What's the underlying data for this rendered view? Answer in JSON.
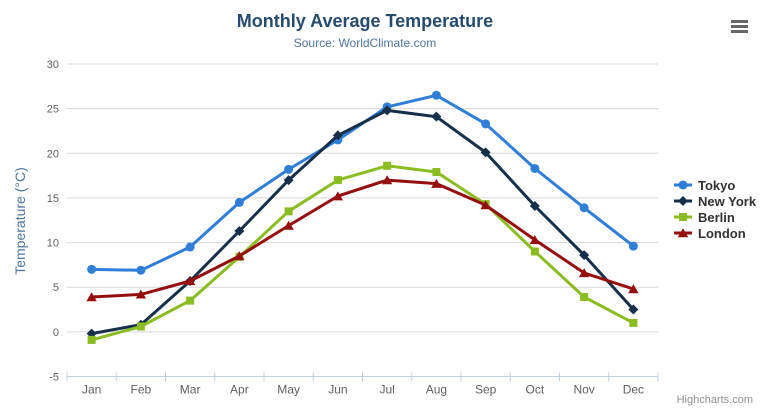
{
  "header": {
    "context_menu_icon": "hamburger-icon"
  },
  "credits": {
    "label": "Highcharts.com"
  },
  "chart_data": {
    "type": "line",
    "title": "Monthly Average Temperature",
    "subtitle": "Source: WorldClimate.com",
    "xlabel": "",
    "ylabel": "Temperature (°C)",
    "categories": [
      "Jan",
      "Feb",
      "Mar",
      "Apr",
      "May",
      "Jun",
      "Jul",
      "Aug",
      "Sep",
      "Oct",
      "Nov",
      "Dec"
    ],
    "ylim": [
      -5,
      30
    ],
    "yticks": [
      -5,
      0,
      5,
      10,
      15,
      20,
      25,
      30
    ],
    "grid": "horizontal",
    "legend_position": "right",
    "colors": {
      "grid_line": "#d8d8d8",
      "axis_line": "#c0d0e0",
      "tick_label": "#606060",
      "title": "#274b6d",
      "subtitle": "#4d759e",
      "axis_title": "#4d759e"
    },
    "series": [
      {
        "name": "Tokyo",
        "color": "#2f7ed8",
        "marker": "circle",
        "values": [
          7.0,
          6.9,
          9.5,
          14.5,
          18.2,
          21.5,
          25.2,
          26.5,
          23.3,
          18.3,
          13.9,
          9.6
        ]
      },
      {
        "name": "New York",
        "color": "#16304a",
        "marker": "diamond",
        "values": [
          -0.2,
          0.8,
          5.7,
          11.3,
          17.0,
          22.0,
          24.8,
          24.1,
          20.1,
          14.1,
          8.6,
          2.5
        ]
      },
      {
        "name": "Berlin",
        "color": "#8bbc21",
        "marker": "square",
        "values": [
          -0.9,
          0.6,
          3.5,
          8.4,
          13.5,
          17.0,
          18.6,
          17.9,
          14.3,
          9.0,
          3.9,
          1.0
        ]
      },
      {
        "name": "London",
        "color": "#960f0f",
        "marker": "triangle",
        "values": [
          3.9,
          4.2,
          5.7,
          8.5,
          11.9,
          15.2,
          17.0,
          16.6,
          14.2,
          10.3,
          6.6,
          4.8
        ]
      }
    ]
  }
}
